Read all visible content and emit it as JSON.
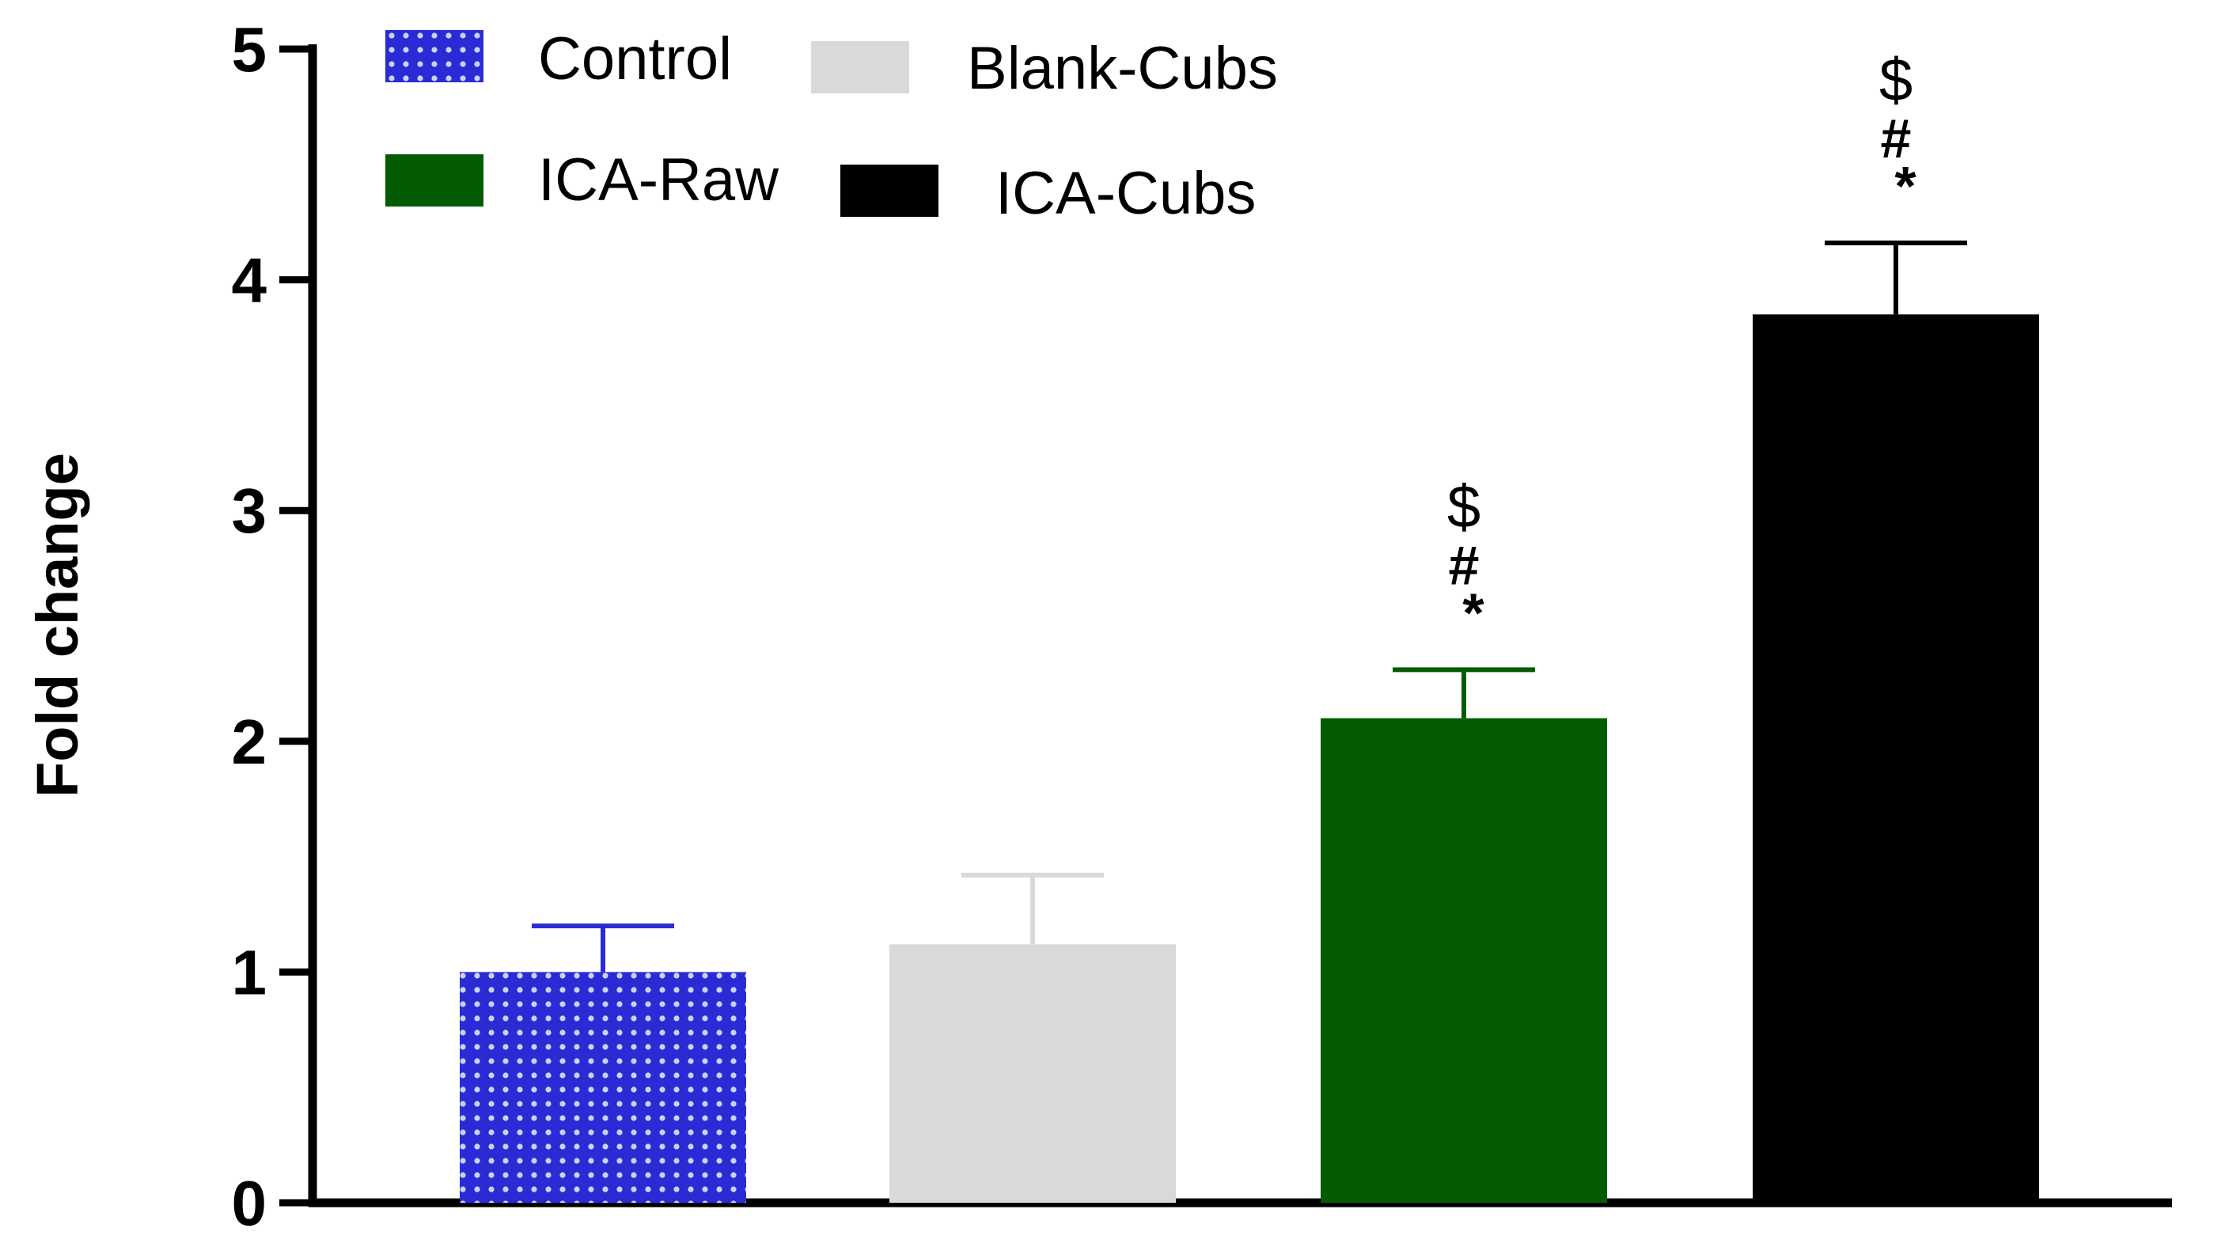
{
  "chart_data": {
    "type": "bar",
    "title": "",
    "xlabel": "",
    "ylabel": "Fold change",
    "ylim": [
      0,
      5
    ],
    "yticks": [
      "0",
      "1",
      "2",
      "3",
      "4",
      "5"
    ],
    "grid": false,
    "legend_position": "top-left",
    "categories": [
      "Control",
      "Blank-Cubs",
      "ICA-Raw",
      "ICA-Cubs"
    ],
    "values": [
      1.0,
      1.12,
      2.1,
      3.85
    ],
    "errors": [
      0.2,
      0.3,
      0.21,
      0.31
    ],
    "colors": [
      "#2b2bd6",
      "#d9d9d9",
      "#035c03",
      "#000000"
    ],
    "patterns": [
      "dotted-grid",
      "solid",
      "solid",
      "solid"
    ],
    "annotations": [
      {
        "category": "ICA-Raw",
        "labels": [
          "$",
          "#",
          "*"
        ]
      },
      {
        "category": "ICA-Cubs",
        "labels": [
          "$",
          "#",
          "*"
        ]
      }
    ],
    "legend": [
      {
        "label": "Control",
        "color": "#2b2bd6",
        "pattern": "dotted-grid"
      },
      {
        "label": "Blank-Cubs",
        "color": "#d9d9d9",
        "pattern": "solid"
      },
      {
        "label": "ICA-Raw",
        "color": "#035c03",
        "pattern": "solid"
      },
      {
        "label": "ICA-Cubs",
        "color": "#000000",
        "pattern": "solid"
      }
    ]
  }
}
